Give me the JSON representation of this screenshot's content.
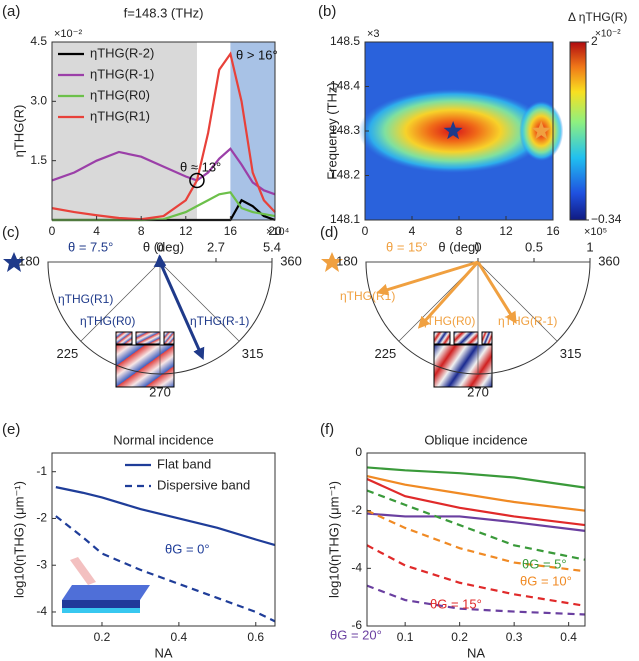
{
  "chart_data": [
    {
      "type": "line",
      "label": "(a)",
      "title": "f=148.3 (THz)",
      "exponent": "×10⁻²",
      "xlabel": "θ (deg)",
      "ylabel": "ηTHG(R)",
      "x": [
        0,
        2,
        4,
        6,
        8,
        10,
        12,
        13,
        14,
        15,
        16,
        17,
        18,
        19,
        20
      ],
      "xlim": [
        0,
        20
      ],
      "xticks": [
        0,
        4,
        8,
        12,
        16,
        20
      ],
      "ylim": [
        0,
        4.5
      ],
      "yticks": [
        1.5,
        {
          "value": 3,
          "label": "3.0"
        },
        4.5
      ],
      "spans": [
        {
          "from": 0,
          "to": 13,
          "color": "#d9d9d9"
        },
        {
          "from": 16,
          "to": 20,
          "color": "#a8c2e6"
        }
      ],
      "legend": "upper left",
      "series": [
        {
          "name": "ηTHG(R-2)",
          "color": "#000000",
          "values": [
            0,
            0,
            0,
            0,
            0,
            0,
            0,
            0,
            0,
            0,
            0,
            0.5,
            0.35,
            0.1,
            0
          ]
        },
        {
          "name": "ηTHG(R-1)",
          "color": "#9b3fa8",
          "values": [
            1.0,
            1.2,
            1.5,
            1.72,
            1.6,
            1.35,
            1.1,
            1.0,
            1.2,
            1.55,
            1.8,
            1.4,
            0.95,
            0.75,
            0.65
          ]
        },
        {
          "name": "ηTHG(R0)",
          "color": "#6cc04a",
          "values": [
            0,
            0,
            0,
            0,
            0,
            0.02,
            0.2,
            0.35,
            0.5,
            0.65,
            0.7,
            0.3,
            0.2,
            0.15,
            0.1
          ]
        },
        {
          "name": "ηTHG(R1)",
          "color": "#e8413a",
          "values": [
            0.3,
            0.2,
            0.12,
            0.05,
            0.02,
            0.1,
            0.5,
            1.0,
            2.2,
            3.8,
            4.2,
            3.0,
            1.2,
            0.5,
            0.2
          ]
        }
      ],
      "marker": {
        "x": 13,
        "y": 1.0
      },
      "annotations": [
        "θ ≈ 13°",
        "θ > 16°"
      ]
    },
    {
      "type": "heatmap",
      "label": "(b)",
      "exponent": "×3",
      "xlabel": "θ (deg)",
      "ylabel": "Frequency (THz)",
      "xlim": [
        0,
        16
      ],
      "xticks": [
        0,
        4,
        8,
        12,
        16
      ],
      "ylim": [
        148.1,
        148.5
      ],
      "yticks": [
        148.1,
        148.2,
        148.3,
        148.4,
        148.5
      ],
      "points": [
        {
          "x": 7.5,
          "y": 148.3,
          "color": "#1f3a8a"
        },
        {
          "x": 15,
          "y": 148.3,
          "color": "#f0a040"
        }
      ],
      "colorbar": {
        "title": "Δ ηTHG(R)",
        "exponent": "×10⁻²",
        "lim": [
          -0.34,
          2
        ],
        "ticks": [
          {
            "value": -0.34,
            "label": "−0.34"
          },
          2
        ]
      }
    },
    {
      "type": "polar",
      "label": "(c)",
      "title": "θ = 7.5°",
      "exponent": "×10⁴",
      "rlim": [
        0,
        5.4
      ],
      "rticks": [
        0,
        2.7,
        5.4
      ],
      "angle_ticks": [
        180,
        225,
        270,
        315,
        360
      ],
      "series": [
        {
          "name": "ηTHG(R1)",
          "color": "#1f3a8a",
          "theta": 95,
          "r": 0.2
        },
        {
          "name": "ηTHG(R0)",
          "color": "#1f3a8a",
          "theta": 85,
          "r": 0.15
        },
        {
          "name": "ηTHG(R-1)",
          "color": "#1f3a8a",
          "theta": 294,
          "r": 5.0
        }
      ]
    },
    {
      "type": "polar",
      "label": "(d)",
      "title": "θ = 15°",
      "exponent": "×10⁵",
      "rlim": [
        0,
        1
      ],
      "rticks": [
        0,
        0.5,
        1
      ],
      "angle_ticks": [
        180,
        225,
        270,
        315,
        360
      ],
      "series": [
        {
          "name": "ηTHG(R1)",
          "color": "#f0a040",
          "theta": 197,
          "r": 0.92
        },
        {
          "name": "ηTHG(R0)",
          "color": "#f0a040",
          "theta": 228,
          "r": 0.77
        },
        {
          "name": "ηTHG(R-1)",
          "color": "#f0a040",
          "theta": 302,
          "r": 0.62
        }
      ]
    },
    {
      "type": "line",
      "label": "(e)",
      "title": "Normal incidence",
      "xlabel": "NA",
      "ylabel": "log10(ηTHG) (μm⁻¹)",
      "x": [
        0.08,
        0.15,
        0.2,
        0.3,
        0.4,
        0.5,
        0.6,
        0.65
      ],
      "xlim": [
        0.07,
        0.65
      ],
      "xticks": [
        0.2,
        0.4,
        0.6
      ],
      "ylim": [
        -4.3,
        -0.6
      ],
      "yticks": [
        -1,
        -2,
        -3,
        -4
      ],
      "legend": "upper right",
      "series": [
        {
          "name": "Flat band",
          "color": "#1f3d99",
          "dash": false,
          "values": [
            -1.33,
            -1.45,
            -1.55,
            -1.8,
            -2.0,
            -2.2,
            -2.45,
            -2.57
          ]
        },
        {
          "name": "Dispersive band",
          "color": "#1f3d99",
          "dash": true,
          "values": [
            -1.95,
            -2.4,
            -2.75,
            -3.1,
            -3.4,
            -3.7,
            -4.0,
            -4.2
          ]
        }
      ],
      "annotations": [
        "θG = 0°"
      ]
    },
    {
      "type": "line",
      "label": "(f)",
      "title": "Oblique incidence",
      "xlabel": "NA",
      "ylabel": "log10(ηTHG) (μm⁻¹)",
      "x": [
        0.03,
        0.1,
        0.2,
        0.3,
        0.43
      ],
      "xlim": [
        0.03,
        0.43
      ],
      "xticks": [
        0.1,
        0.2,
        0.3,
        0.4
      ],
      "ylim": [
        -6,
        0
      ],
      "yticks": [
        0,
        -2,
        -4,
        -6
      ],
      "series": [
        {
          "color": "#3a9a3a",
          "dash": false,
          "values": [
            -0.5,
            -0.6,
            -0.7,
            -0.85,
            -1.2
          ]
        },
        {
          "color": "#f08a24",
          "dash": false,
          "values": [
            -0.8,
            -1.1,
            -1.4,
            -1.7,
            -2.0
          ]
        },
        {
          "color": "#e02a2a",
          "dash": false,
          "values": [
            -0.9,
            -1.5,
            -1.9,
            -2.2,
            -2.5
          ]
        },
        {
          "color": "#6a3fa0",
          "dash": false,
          "values": [
            -2.1,
            -2.2,
            -2.2,
            -2.4,
            -2.7
          ]
        },
        {
          "color": "#3a9a3a",
          "dash": true,
          "values": [
            -1.3,
            -1.8,
            -2.5,
            -3.2,
            -3.7
          ]
        },
        {
          "color": "#f08a24",
          "dash": true,
          "values": [
            -2.0,
            -2.6,
            -3.3,
            -3.8,
            -4.1
          ]
        },
        {
          "color": "#e02a2a",
          "dash": true,
          "values": [
            -3.2,
            -3.9,
            -4.5,
            -4.9,
            -5.3
          ]
        },
        {
          "color": "#6a3fa0",
          "dash": true,
          "values": [
            -4.6,
            -5.1,
            -5.4,
            -5.5,
            -5.6
          ]
        }
      ],
      "annotations": [
        "θG = 5°",
        "θG = 10°",
        "θG = 15°",
        "θG = 20°"
      ]
    }
  ]
}
